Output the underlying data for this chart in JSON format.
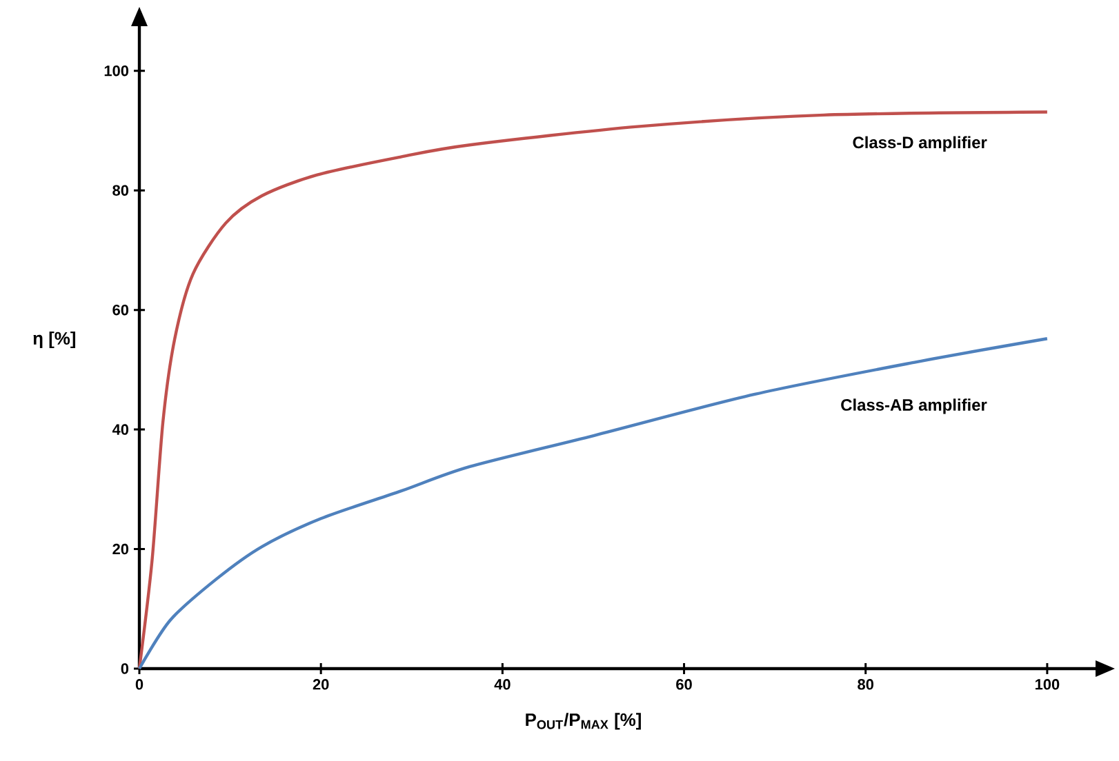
{
  "chart_data": {
    "type": "line",
    "xlabel": "P$_{OUT}$/P$_{MAX}$ [%]",
    "ylabel": "η [%]",
    "xlim": [
      0,
      107
    ],
    "ylim": [
      0,
      110
    ],
    "xticks": [
      0,
      20,
      40,
      60,
      80,
      100
    ],
    "yticks": [
      0,
      20,
      40,
      60,
      80,
      100
    ],
    "grid": false,
    "series": [
      {
        "name": "Class-D amplifier",
        "color": "#c0504d",
        "x": [
          0,
          1.4,
          2.6,
          3.9,
          5.9,
          9.5,
          13.5,
          19.6,
          28.8,
          36.4,
          55.1,
          75.4,
          100
        ],
        "values": [
          0,
          18.1,
          41.3,
          55.2,
          66,
          74.5,
          79.1,
          82.6,
          85.6,
          87.6,
          90.7,
          92.6,
          93.1
        ]
      },
      {
        "name": "Class-AB amplifier",
        "color": "#4f81bd",
        "x": [
          0,
          3.4,
          8.5,
          13.5,
          20,
          28.8,
          36.4,
          50.1,
          67.8,
          85.6,
          100
        ],
        "values": [
          0,
          8.1,
          15,
          20.4,
          25.1,
          29.7,
          33.8,
          39,
          45.9,
          51.3,
          55.2
        ]
      }
    ]
  }
}
